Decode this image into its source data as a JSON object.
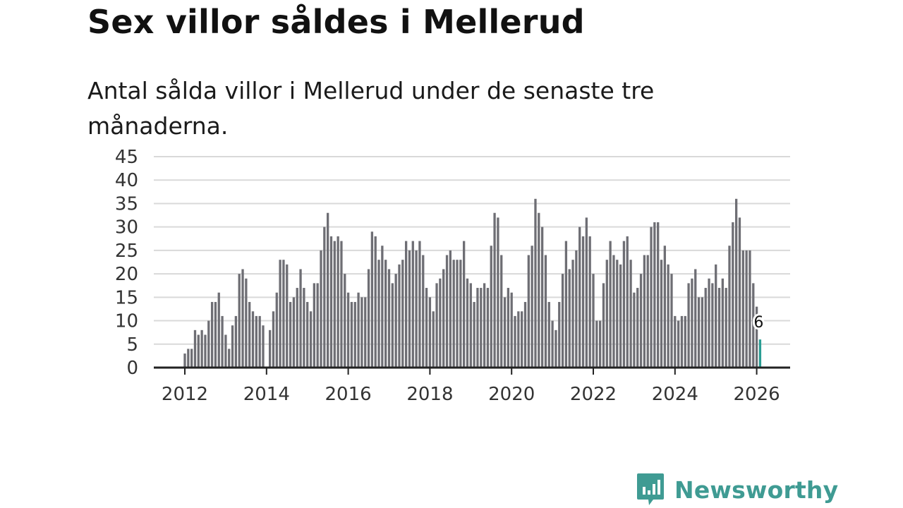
{
  "title": "Sex villor såldes i Mellerud",
  "subtitle": "Antal sålda villor i Mellerud under de senaste tre månaderna.",
  "brand": {
    "name": "Newsworthy",
    "color": "#3f9b93",
    "icon": "newsworthy-logo-icon"
  },
  "colors": {
    "bar": "#6e6e74",
    "highlight": "#2a9d94",
    "grid": "#d9d9d9",
    "axis": "#222222"
  },
  "chart_data": {
    "type": "bar",
    "title": "Sex villor såldes i Mellerud",
    "subtitle": "Antal sålda villor i Mellerud under de senaste tre månaderna.",
    "xlabel": "",
    "ylabel": "",
    "ylim": [
      0,
      45
    ],
    "yticks": [
      0,
      5,
      10,
      15,
      20,
      25,
      30,
      35,
      40,
      45
    ],
    "x_start": "2012-01",
    "x_end": "2026-02",
    "frequency": "monthly, rolling three-month sum",
    "xtick_years": [
      2012,
      2014,
      2016,
      2018,
      2020,
      2022,
      2024,
      2026
    ],
    "grid": true,
    "values": [
      3,
      4,
      4,
      8,
      7,
      8,
      7,
      10,
      14,
      14,
      16,
      11,
      7,
      4,
      9,
      11,
      20,
      21,
      19,
      14,
      12,
      11,
      11,
      9,
      0,
      8,
      12,
      16,
      23,
      23,
      22,
      14,
      15,
      17,
      21,
      17,
      14,
      12,
      18,
      18,
      25,
      30,
      33,
      28,
      27,
      28,
      27,
      20,
      16,
      14,
      14,
      16,
      15,
      15,
      21,
      29,
      28,
      23,
      26,
      23,
      21,
      18,
      20,
      22,
      23,
      27,
      25,
      27,
      25,
      27,
      24,
      17,
      15,
      12,
      18,
      19,
      21,
      24,
      25,
      23,
      23,
      23,
      27,
      19,
      18,
      14,
      17,
      17,
      18,
      17,
      26,
      33,
      32,
      24,
      15,
      17,
      16,
      11,
      12,
      12,
      14,
      24,
      26,
      36,
      33,
      30,
      24,
      14,
      10,
      8,
      14,
      20,
      27,
      21,
      23,
      25,
      30,
      28,
      32,
      28,
      20,
      10,
      10,
      18,
      23,
      27,
      24,
      23,
      22,
      27,
      28,
      23,
      16,
      17,
      20,
      24,
      24,
      30,
      31,
      31,
      23,
      26,
      22,
      20,
      11,
      10,
      11,
      11,
      18,
      19,
      21,
      15,
      15,
      17,
      19,
      18,
      22,
      17,
      19,
      17,
      26,
      31,
      36,
      32,
      25,
      25,
      25,
      18,
      13,
      6
    ],
    "highlight": {
      "index": 169,
      "value": 6,
      "label": "6"
    }
  }
}
